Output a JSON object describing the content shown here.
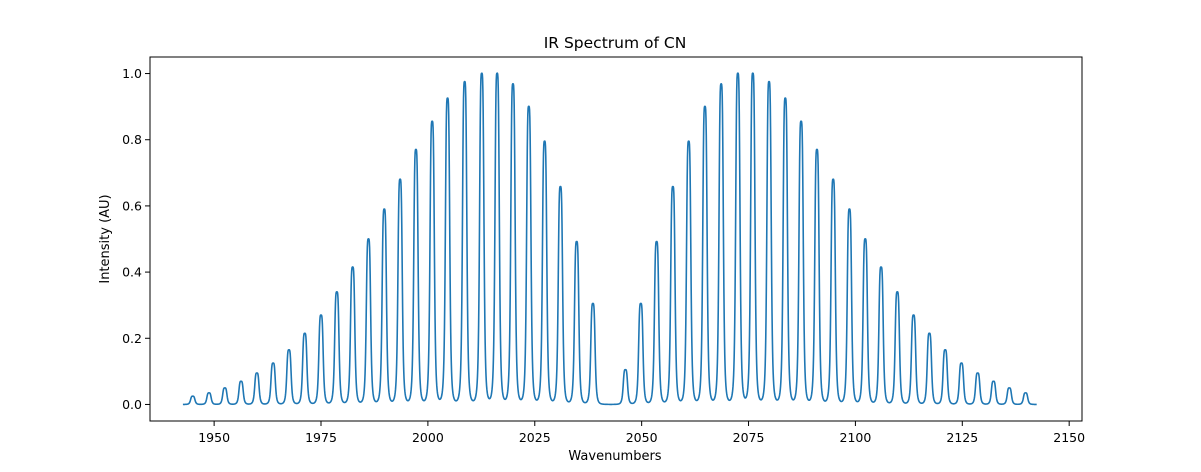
{
  "chart_data": {
    "type": "line",
    "title": "IR Spectrum of CN",
    "xlabel": "Wavenumbers",
    "ylabel": "Intensity (AU)",
    "xlim": [
      1935.0,
      2153.0
    ],
    "ylim": [
      -0.05,
      1.05
    ],
    "x_ticks": [
      1950,
      1975,
      2000,
      2025,
      2050,
      2075,
      2100,
      2125,
      2150
    ],
    "y_ticks": [
      0.0,
      0.2,
      0.4,
      0.6,
      0.8,
      1.0
    ],
    "x_tick_labels": [
      "1950",
      "1975",
      "2000",
      "2025",
      "2050",
      "2075",
      "2100",
      "2125",
      "2150"
    ],
    "y_tick_labels": [
      "0.0",
      "0.2",
      "0.4",
      "0.6",
      "0.8",
      "1.0"
    ],
    "grid": false,
    "line_color": "#1f77b4",
    "x_range": [
      1942.7,
      2142.4
    ],
    "lines": {
      "x": [
        1945.0,
        1948.8,
        1952.5,
        1956.3,
        1960.0,
        1963.8,
        1967.5,
        1971.2,
        1975.0,
        1978.7,
        1982.4,
        1986.1,
        1989.8,
        1993.5,
        1997.2,
        2001.0,
        2004.6,
        2008.6,
        2012.6,
        2016.2,
        2019.9,
        2023.6,
        2027.3,
        2031.0,
        2034.8,
        2038.6,
        2046.2,
        2049.8,
        2053.5,
        2057.3,
        2061.0,
        2064.8,
        2068.6,
        2072.5,
        2076.0,
        2079.8,
        2083.6,
        2087.3,
        2091.0,
        2094.8,
        2098.6,
        2102.3,
        2106.0,
        2109.8,
        2113.6,
        2117.3,
        2121.0,
        2124.8,
        2128.6,
        2132.3,
        2136.0,
        2139.8
      ],
      "intensity": [
        0.025,
        0.035,
        0.05,
        0.07,
        0.095,
        0.125,
        0.165,
        0.215,
        0.27,
        0.34,
        0.415,
        0.5,
        0.59,
        0.68,
        0.77,
        0.855,
        0.925,
        0.975,
        1.0,
        1.0,
        0.968,
        0.9,
        0.795,
        0.658,
        0.492,
        0.305,
        0.105,
        0.305,
        0.492,
        0.658,
        0.795,
        0.9,
        0.968,
        1.0,
        1.0,
        0.975,
        0.925,
        0.855,
        0.77,
        0.68,
        0.59,
        0.5,
        0.415,
        0.34,
        0.27,
        0.215,
        0.165,
        0.125,
        0.095,
        0.07,
        0.05,
        0.035
      ],
      "half_width": 0.55
    }
  }
}
